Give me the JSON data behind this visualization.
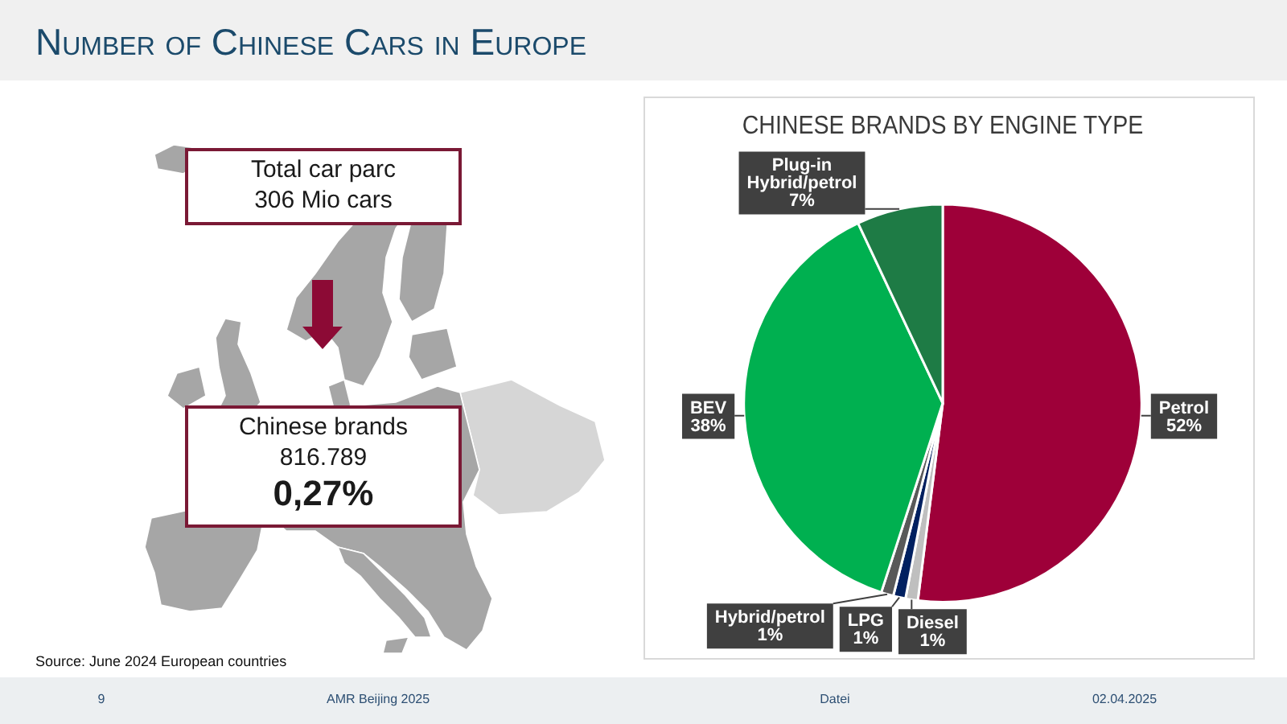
{
  "chart_data": {
    "type": "pie",
    "title": "Number of Chinese Cars in Europe",
    "subtitle": "CHINESE BRANDS BY ENGINE TYPE",
    "categories": [
      "Petrol",
      "Diesel",
      "LPG",
      "Hybrid/petrol",
      "BEV",
      "Plug-in Hybrid/petrol"
    ],
    "values": [
      52,
      1,
      1,
      1,
      38,
      7
    ],
    "value_labels": [
      "52%",
      "1%",
      "1%",
      "1%",
      "38%",
      "7%"
    ],
    "colors": [
      "#9e0039",
      "#bfbfbf",
      "#002060",
      "#595959",
      "#00b050",
      "#1e7b45"
    ],
    "annotations": [
      "Total car parc\n306 Mio cars",
      "Chinese brands\n816.789\n0,27%",
      "Source: June 2024 European countries",
      "9",
      "AMR Beijing 2025",
      "Datei",
      "02.04.2025"
    ]
  }
}
